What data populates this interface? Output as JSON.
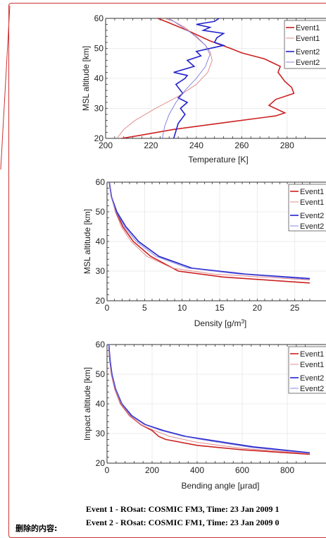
{
  "captions": {
    "event1": "Event 1 - ROsat: COSMIC FM3, Time: 23 Jan 2009 1",
    "event2": "Event 2 - ROsat: COSMIC FM1, Time: 23 Jan 2009 0"
  },
  "deleted_label": "删除的内容:",
  "legend_labels": [
    "Event1",
    "Event1",
    "Event2",
    "Event2"
  ],
  "colors": {
    "event1_main": "#cc2222",
    "event1_light": "#e08080",
    "event2_main": "#2222cc",
    "event2_light": "#7a7ae0",
    "frame_border": "#cc3333"
  },
  "chart_data": [
    {
      "type": "line",
      "xlabel": "Temperature [K]",
      "ylabel": "MSL altitude [km]",
      "xlim": [
        200,
        290
      ],
      "ylim": [
        20,
        60
      ],
      "xticks": [
        "200",
        "220",
        "240",
        "260",
        "280"
      ],
      "yticks": [
        "20",
        "30",
        "40",
        "50",
        "60"
      ],
      "grid": true,
      "legend": "top-right",
      "series": [
        {
          "name": "Event1",
          "style": "event1_main",
          "x": [
            207,
            215,
            230,
            255,
            275,
            279,
            272,
            275,
            283,
            282,
            279,
            276,
            277,
            270,
            260,
            255,
            246,
            236,
            228,
            223
          ],
          "y": [
            20,
            21,
            23,
            25.5,
            27.5,
            28.5,
            31,
            33,
            35,
            37,
            39,
            42,
            44,
            46.5,
            48.5,
            50,
            52.5,
            56,
            58.5,
            60
          ]
        },
        {
          "name": "Event1",
          "style": "event1_light",
          "x": [
            205,
            208,
            213,
            222,
            232,
            240,
            245,
            247,
            246,
            244,
            241,
            238,
            235,
            230,
            226
          ],
          "y": [
            20,
            23,
            26,
            30,
            34,
            38,
            42,
            46,
            49,
            51,
            53,
            55,
            57,
            59,
            60
          ]
        },
        {
          "name": "Event2",
          "style": "event2_main",
          "x": [
            230,
            232,
            235,
            233,
            236,
            232,
            234,
            232,
            231,
            235,
            236,
            230,
            239,
            236,
            242,
            240,
            252,
            248,
            249,
            252,
            243,
            246,
            240,
            248,
            250
          ],
          "y": [
            20,
            25,
            28,
            30,
            32,
            33.5,
            35,
            37,
            38,
            40,
            41,
            42,
            44,
            46,
            47.5,
            49,
            51,
            52,
            53.5,
            55,
            56,
            57,
            58,
            59,
            60
          ]
        },
        {
          "name": "Event2",
          "style": "event2_light",
          "x": [
            225,
            226,
            228,
            231,
            235,
            240,
            244,
            246,
            244,
            240,
            236,
            232,
            228
          ],
          "y": [
            20,
            24,
            28,
            32,
            36,
            40,
            44,
            48,
            51,
            54,
            56,
            58,
            60
          ]
        }
      ]
    },
    {
      "type": "line",
      "xlabel": "Density [g/m³]",
      "ylabel": "MSL altitude [km]",
      "xlim": [
        0,
        27
      ],
      "ylim": [
        20,
        60
      ],
      "xticks": [
        "0",
        "5",
        "10",
        "15",
        "20",
        "25"
      ],
      "yticks": [
        "20",
        "30",
        "40",
        "50",
        "60"
      ],
      "grid": true,
      "legend": "top-right",
      "series": [
        {
          "name": "Event1",
          "style": "event1_main",
          "x": [
            0.3,
            0.6,
            1.2,
            2.1,
            3.5,
            5.8,
            9.5,
            15.5,
            27
          ],
          "y": [
            60,
            55,
            50,
            45,
            40,
            35,
            30,
            28,
            26
          ]
        },
        {
          "name": "Event1",
          "style": "event1_light",
          "x": [
            0.3,
            0.6,
            1.1,
            1.9,
            3.2,
            5.3,
            8.7,
            14.2,
            27
          ],
          "y": [
            60,
            55,
            50,
            45,
            40,
            35,
            31,
            29,
            27
          ]
        },
        {
          "name": "Event2",
          "style": "event2_main",
          "x": [
            0.3,
            0.6,
            1.3,
            2.5,
            4.2,
            6.9,
            11.3,
            18.4,
            27
          ],
          "y": [
            60,
            55,
            50,
            45,
            40,
            35,
            31,
            29,
            27.5
          ]
        },
        {
          "name": "Event2",
          "style": "event2_light",
          "x": [
            0.3,
            0.6,
            1.2,
            2.3,
            3.9,
            6.5,
            10.8,
            17.6,
            27
          ],
          "y": [
            60,
            55,
            50,
            45,
            40,
            35,
            31,
            29,
            27.2
          ]
        }
      ]
    },
    {
      "type": "line",
      "xlabel": "Bending angle [μrad]",
      "ylabel": "Impact altitude [km]",
      "xlim": [
        0,
        900
      ],
      "ylim": [
        20,
        60
      ],
      "xticks": [
        "0",
        "200",
        "400",
        "600",
        "800"
      ],
      "yticks": [
        "20",
        "30",
        "40",
        "50",
        "60"
      ],
      "grid": true,
      "legend": "top-right",
      "series": [
        {
          "name": "Event1",
          "style": "event1_main",
          "x": [
            8,
            12,
            20,
            35,
            60,
            100,
            150,
            200,
            230,
            260,
            400,
            600,
            900
          ],
          "y": [
            60,
            55,
            50,
            45,
            40,
            36,
            33,
            31,
            29,
            28,
            26,
            24.5,
            23
          ]
        },
        {
          "name": "Event1",
          "style": "event1_light",
          "x": [
            8,
            12,
            20,
            35,
            60,
            100,
            150,
            210,
            280,
            400,
            600,
            900
          ],
          "y": [
            60,
            55,
            50,
            45,
            40,
            36,
            33,
            31,
            29,
            27,
            25,
            23.2
          ]
        },
        {
          "name": "Event2",
          "style": "event2_main",
          "x": [
            8,
            13,
            22,
            38,
            66,
            110,
            170,
            250,
            350,
            480,
            650,
            900
          ],
          "y": [
            60,
            55,
            50,
            45,
            40,
            36,
            33,
            31,
            29,
            27.5,
            25.5,
            23.5
          ]
        },
        {
          "name": "Event2",
          "style": "event2_light",
          "x": [
            8,
            12,
            21,
            37,
            64,
            106,
            165,
            240,
            340,
            470,
            640,
            900
          ],
          "y": [
            60,
            55,
            50,
            45,
            40,
            36,
            33,
            31,
            29,
            27.3,
            25.3,
            23.3
          ]
        }
      ]
    }
  ]
}
